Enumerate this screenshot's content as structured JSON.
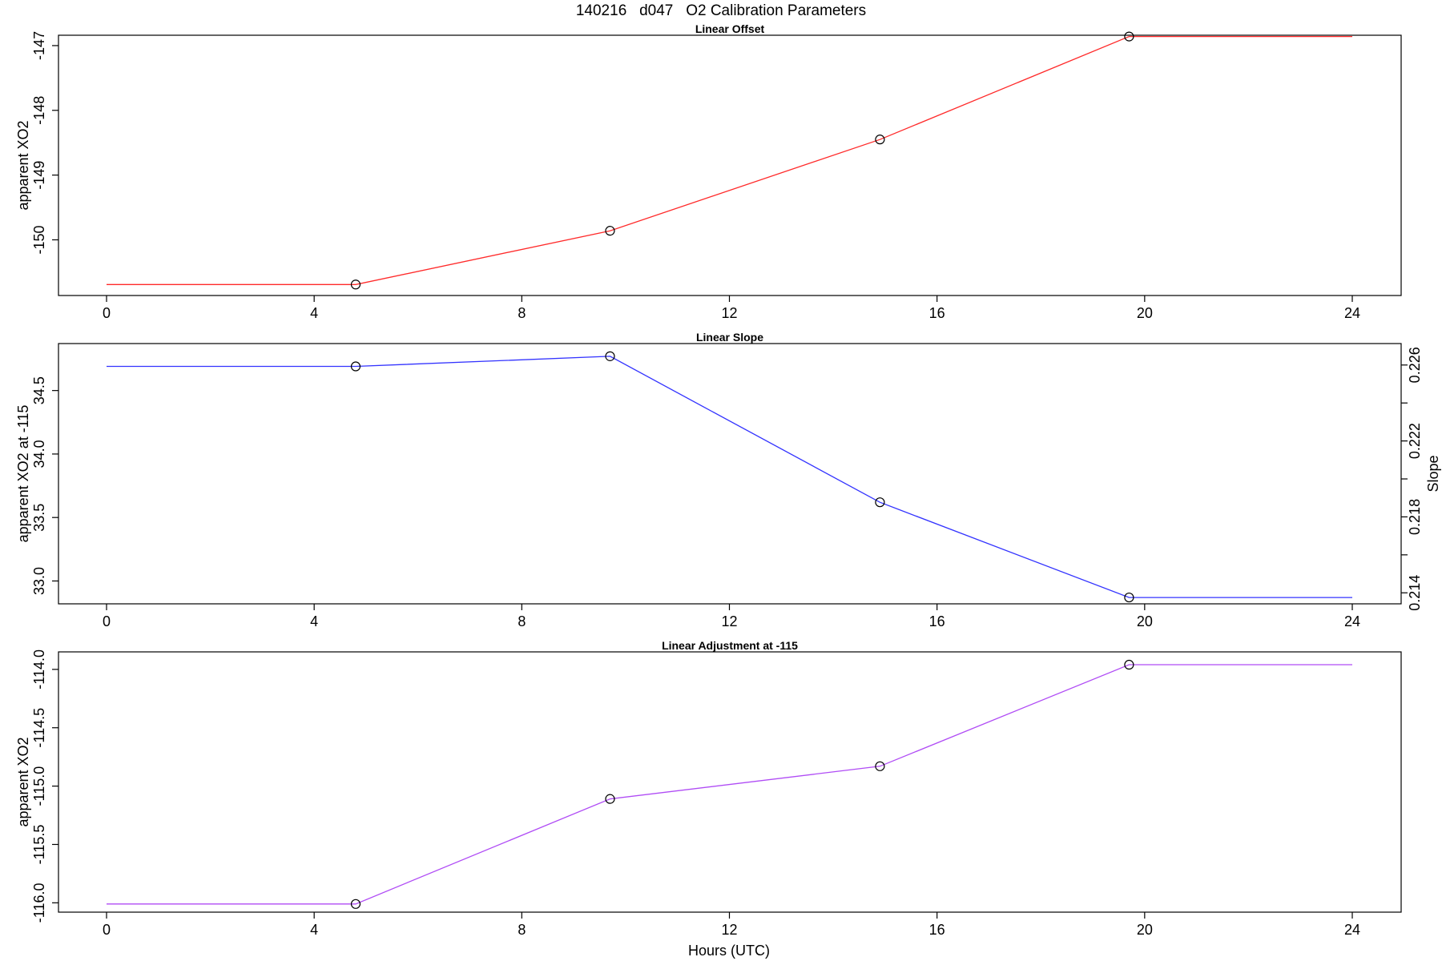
{
  "figure": {
    "title": "140216   d047   O2 Calibration Parameters",
    "xlabel": "Hours (UTC)"
  },
  "chart_data": [
    {
      "type": "line",
      "title": "Linear Offset",
      "ylabel": "apparent XO2",
      "xlim": [
        0,
        24
      ],
      "ylim": [
        -150.86,
        -146.84
      ],
      "xticks": [
        0,
        4,
        8,
        12,
        16,
        20,
        24
      ],
      "yticks": [
        -150,
        -149,
        -148,
        -147
      ],
      "marker_x": [
        4.8,
        9.7,
        14.9,
        19.7
      ],
      "series": [
        {
          "color": "#ff2a2a",
          "x": [
            0,
            4.8,
            9.7,
            14.9,
            19.7,
            24
          ],
          "y": [
            -150.69,
            -150.69,
            -149.86,
            -148.45,
            -146.86,
            -146.86
          ]
        }
      ]
    },
    {
      "type": "line",
      "title": "Linear Slope",
      "ylabel": "apparent XO2 at -115",
      "y2label": "Slope",
      "xlim": [
        0,
        24
      ],
      "ylim": [
        32.82,
        34.87
      ],
      "xticks": [
        0,
        4,
        8,
        12,
        16,
        20,
        24
      ],
      "yticks": [
        33.0,
        33.5,
        34.0,
        34.5
      ],
      "y2lim": [
        0.21342,
        0.22713
      ],
      "y2ticks": [
        0.214,
        0.218,
        0.222,
        0.226
      ],
      "y2minor": [
        0.216,
        0.22,
        0.224
      ],
      "marker_x": [
        4.8,
        9.7,
        14.9,
        19.7
      ],
      "series": [
        {
          "color": "#3333ff",
          "x": [
            0,
            4.8,
            9.7,
            14.9,
            19.7,
            24
          ],
          "y": [
            34.69,
            34.69,
            34.77,
            33.62,
            32.87,
            32.87
          ]
        }
      ]
    },
    {
      "type": "line",
      "title": "Linear Adjustment at -115",
      "ylabel": "apparent XO2",
      "xlim": [
        0,
        24
      ],
      "ylim": [
        -116.08,
        -113.85
      ],
      "xticks": [
        0,
        4,
        8,
        12,
        16,
        20,
        24
      ],
      "yticks": [
        -116.0,
        -115.5,
        -115.0,
        -114.5,
        -114.0
      ],
      "marker_x": [
        4.8,
        9.7,
        14.9,
        19.7
      ],
      "series": [
        {
          "color": "#b04cf5",
          "x": [
            0,
            4.8,
            9.7,
            14.9,
            19.7,
            24
          ],
          "y": [
            -116.01,
            -116.01,
            -115.11,
            -114.83,
            -113.96,
            -113.96
          ]
        }
      ]
    }
  ]
}
